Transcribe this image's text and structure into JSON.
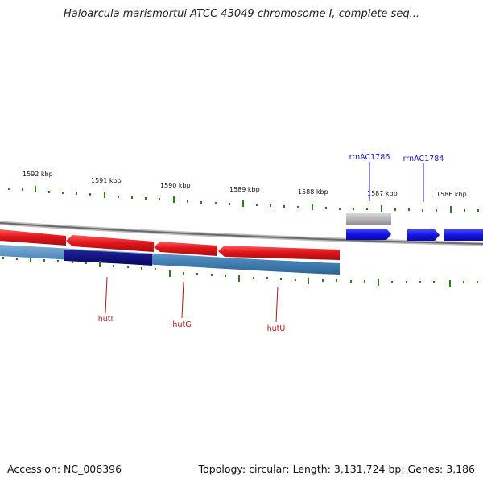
{
  "title": "Haloarcula marismortui ATCC 43049 chromosome I, complete seq...",
  "accession_text": "Accession: NC_006396",
  "topology_text": "Topology: circular; Length: 3,131,724 bp; Genes: 3,186",
  "ruler": {
    "labels": [
      "1592 kbp",
      "1591 kbp",
      "1590 kbp",
      "1589 kbp",
      "1588 kbp",
      "1587 kbp",
      "1586 kbp"
    ]
  },
  "genes_forward": [
    "rrnAC1786",
    "rrnAC1784"
  ],
  "genes_reverse": [
    "hutI",
    "hutG",
    "hutU"
  ],
  "colors": {
    "tick": "#2e7d1a",
    "backbone": "#7a7a7a",
    "reverse_cds": "#e0161c",
    "reverse_gene_band": "#4a86b8",
    "reverse_gene_band_dark": "#0a0a78",
    "forward_cds": "#1414e6",
    "forward_gene_gray": "#b4b4b4",
    "label_forward": "#1a1ac8",
    "label_reverse": "#b01818"
  }
}
